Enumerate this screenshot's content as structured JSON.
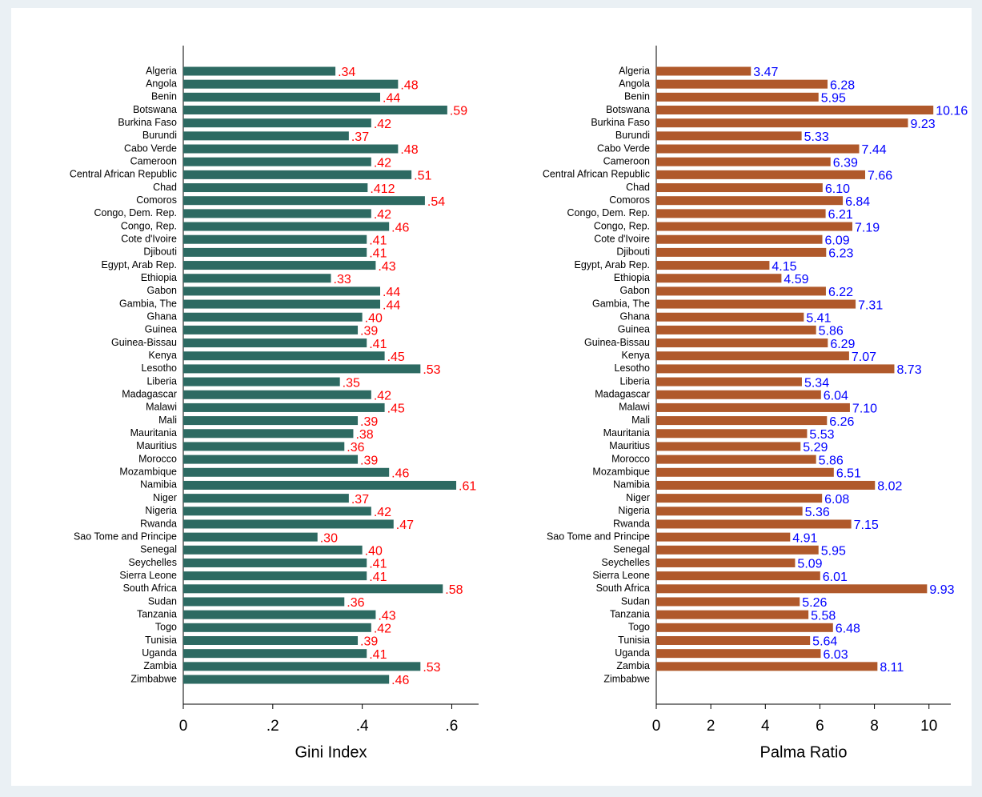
{
  "chart_data": [
    {
      "type": "barh",
      "xlabel": "Gini Index",
      "color": "#2d6a62",
      "label_color": "#ff0000",
      "categories": [
        "Algeria",
        "Angola",
        "Benin",
        "Botswana",
        "Burkina Faso",
        "Burundi",
        "Cabo Verde",
        "Cameroon",
        "Central African Republic",
        "Chad",
        "Comoros",
        "Congo, Dem. Rep.",
        "Congo, Rep.",
        "Cote d'Ivoire",
        "Djibouti",
        "Egypt, Arab Rep.",
        "Ethiopia",
        "Gabon",
        "Gambia, The",
        "Ghana",
        "Guinea",
        "Guinea-Bissau",
        "Kenya",
        "Lesotho",
        "Liberia",
        "Madagascar",
        "Malawi",
        "Mali",
        "Mauritania",
        "Mauritius",
        "Morocco",
        "Mozambique",
        "Namibia",
        "Niger",
        "Nigeria",
        "Rwanda",
        "Sao Tome and Principe",
        "Senegal",
        "Seychelles",
        "Sierra Leone",
        "South Africa",
        "Sudan",
        "Tanzania",
        "Togo",
        "Tunisia",
        "Uganda",
        "Zambia",
        "Zimbabwe"
      ],
      "values": [
        0.34,
        0.48,
        0.44,
        0.59,
        0.42,
        0.37,
        0.48,
        0.42,
        0.51,
        0.412,
        0.54,
        0.42,
        0.46,
        0.41,
        0.41,
        0.43,
        0.33,
        0.44,
        0.44,
        0.4,
        0.39,
        0.41,
        0.45,
        0.53,
        0.35,
        0.42,
        0.45,
        0.39,
        0.38,
        0.36,
        0.39,
        0.46,
        0.61,
        0.37,
        0.42,
        0.47,
        0.3,
        0.4,
        0.41,
        0.41,
        0.58,
        0.36,
        0.43,
        0.42,
        0.39,
        0.41,
        0.53,
        0.46
      ],
      "value_labels": [
        ".34",
        ".48",
        ".44",
        ".59",
        ".42",
        ".37",
        ".48",
        ".42",
        ".51",
        ".412",
        ".54",
        ".42",
        ".46",
        ".41",
        ".41",
        ".43",
        ".33",
        ".44",
        ".44",
        ".40",
        ".39",
        ".41",
        ".45",
        ".53",
        ".35",
        ".42",
        ".45",
        ".39",
        ".38",
        ".36",
        ".39",
        ".46",
        ".61",
        ".37",
        ".42",
        ".47",
        ".30",
        ".40",
        ".41",
        ".41",
        ".58",
        ".36",
        ".43",
        ".42",
        ".39",
        ".41",
        ".53",
        ".46"
      ],
      "xlim": [
        0,
        0.66
      ],
      "xticks": [
        0,
        {
          "value": 0.2,
          "label": ".2"
        },
        {
          "value": 0.4,
          "label": ".4"
        },
        {
          "value": 0.6,
          "label": ".6"
        }
      ]
    },
    {
      "type": "barh",
      "xlabel": "Palma Ratio",
      "color": "#b0592b",
      "label_color": "#0000ff",
      "categories": [
        "Algeria",
        "Angola",
        "Benin",
        "Botswana",
        "Burkina Faso",
        "Burundi",
        "Cabo Verde",
        "Cameroon",
        "Central African Republic",
        "Chad",
        "Comoros",
        "Congo, Dem. Rep.",
        "Congo, Rep.",
        "Cote d'Ivoire",
        "Djibouti",
        "Egypt, Arab Rep.",
        "Ethiopia",
        "Gabon",
        "Gambia, The",
        "Ghana",
        "Guinea",
        "Guinea-Bissau",
        "Kenya",
        "Lesotho",
        "Liberia",
        "Madagascar",
        "Malawi",
        "Mali",
        "Mauritania",
        "Mauritius",
        "Morocco",
        "Mozambique",
        "Namibia",
        "Niger",
        "Nigeria",
        "Rwanda",
        "Sao Tome and Principe",
        "Senegal",
        "Seychelles",
        "Sierra Leone",
        "South Africa",
        "Sudan",
        "Tanzania",
        "Togo",
        "Tunisia",
        "Uganda",
        "Zambia",
        "Zimbabwe"
      ],
      "values": [
        3.47,
        6.28,
        5.95,
        10.16,
        9.23,
        5.33,
        7.44,
        6.39,
        7.66,
        6.1,
        6.84,
        6.21,
        7.19,
        6.09,
        6.23,
        4.15,
        4.59,
        6.22,
        7.31,
        5.41,
        5.86,
        6.29,
        7.07,
        8.73,
        5.34,
        6.04,
        7.1,
        6.26,
        5.53,
        5.29,
        5.86,
        6.51,
        8.02,
        6.08,
        5.36,
        7.15,
        4.91,
        5.95,
        5.09,
        6.01,
        9.93,
        5.26,
        5.58,
        6.48,
        5.64,
        6.03,
        8.11,
        null
      ],
      "value_labels": [
        "3.47",
        "6.28",
        "5.95",
        "10.16",
        "9.23",
        "5.33",
        "7.44",
        "6.39",
        "7.66",
        "6.10",
        "6.84",
        "6.21",
        "7.19",
        "6.09",
        "6.23",
        "4.15",
        "4.59",
        "6.22",
        "7.31",
        "5.41",
        "5.86",
        "6.29",
        "7.07",
        "8.73",
        "5.34",
        "6.04",
        "7.10",
        "6.26",
        "5.53",
        "5.29",
        "5.86",
        "6.51",
        "8.02",
        "6.08",
        "5.36",
        "7.15",
        "4.91",
        "5.95",
        "5.09",
        "6.01",
        "9.93",
        "5.26",
        "5.58",
        "6.48",
        "5.64",
        "6.03",
        "8.11",
        null
      ],
      "xlim": [
        0,
        10.8
      ],
      "xticks": [
        0,
        2,
        4,
        6,
        8,
        10
      ]
    }
  ]
}
